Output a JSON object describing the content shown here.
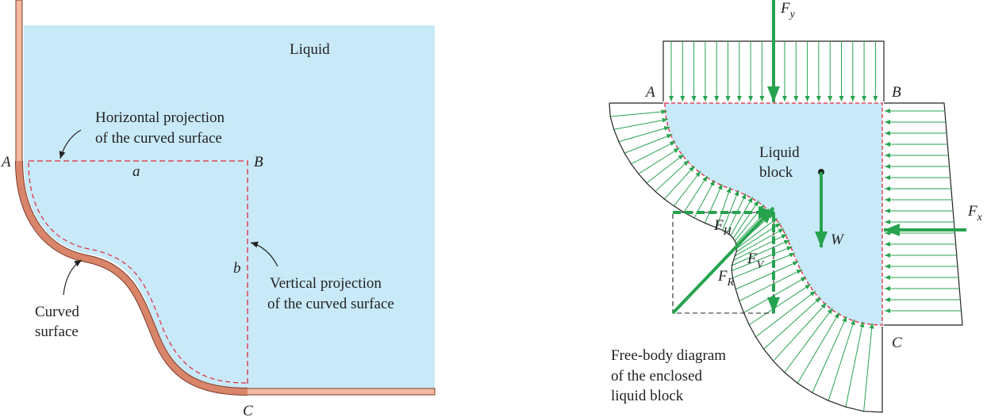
{
  "left": {
    "liquid": "Liquid",
    "horizontal_projection": [
      "Horizontal projection",
      "of the curved surface"
    ],
    "vertical_projection": [
      "Vertical projection",
      "of the curved surface"
    ],
    "curved_surface": [
      "Curved",
      "surface"
    ],
    "points": {
      "A": "A",
      "B": "B",
      "C": "C"
    },
    "dims": {
      "a": "a",
      "b": "b"
    }
  },
  "right": {
    "points": {
      "A": "A",
      "B": "B",
      "C": "C"
    },
    "liquid_block": [
      "Liquid",
      "block"
    ],
    "weight": "W",
    "forces": {
      "Fy": {
        "main": "F",
        "sub": "y"
      },
      "Fx": {
        "main": "F",
        "sub": "x"
      },
      "FH": {
        "main": "F",
        "sub": "H"
      },
      "FV": {
        "main": "F",
        "sub": "V"
      },
      "FR": {
        "main": "F",
        "sub": "R"
      }
    },
    "caption": [
      "Free-body diagram",
      "of the enclosed",
      "liquid block"
    ]
  }
}
